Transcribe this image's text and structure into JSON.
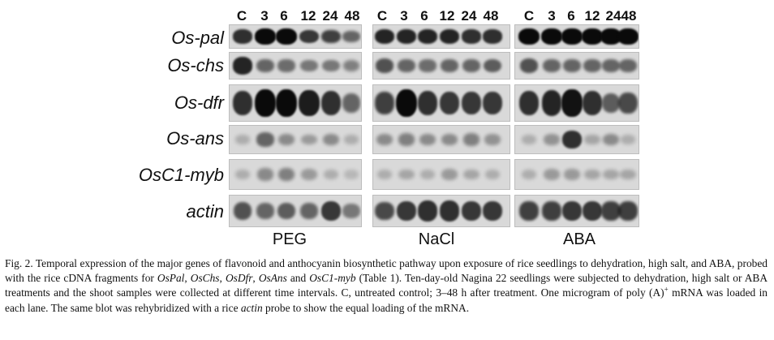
{
  "lanes": [
    "C",
    "3",
    "6",
    "12",
    "24",
    "48"
  ],
  "genes": [
    "Os-pal",
    "Os-chs",
    "Os-dfr",
    "Os-ans",
    "OsC1-myb",
    "actin"
  ],
  "treatments": [
    "PEG",
    "NaCl",
    "ABA"
  ],
  "caption": {
    "p1": "Fig. 2. Temporal expression of the major genes of flavonoid and anthocyanin biosynthetic pathway upon exposure of rice seedlings to dehydration, high salt, and ABA, probed with the rice cDNA fragments for ",
    "g1": "OsPal",
    "s1": ", ",
    "g2": "OsChs",
    "s2": ", ",
    "g3": "OsDfr",
    "s3": ", ",
    "g4": "OsAns",
    "s4": " and ",
    "g5": "OsC1-myb",
    "p2": " (Table 1). Ten-day-old Nagina 22 seedlings were subjected to dehydration, high salt or ABA treatments and the shoot samples were collected at different time intervals. C, untreated control; 3–48 h after treatment. One microgram of poly (A)",
    "sup": "+",
    "p3": " mRNA was loaded in each lane. The same blot was rehybridized with a rice ",
    "g6": "actin",
    "p4": " probe to show the equal loading of the mRNA."
  },
  "blot_intensity": {
    "PEG": [
      [
        0.8,
        1.0,
        1.0,
        0.75,
        0.7,
        0.5
      ],
      [
        0.85,
        0.5,
        0.45,
        0.4,
        0.4,
        0.35
      ],
      [
        0.8,
        1.0,
        1.0,
        0.9,
        0.8,
        0.5
      ],
      [
        0.1,
        0.5,
        0.3,
        0.2,
        0.3,
        0.1
      ],
      [
        0.1,
        0.3,
        0.35,
        0.2,
        0.1,
        0.05
      ],
      [
        0.6,
        0.5,
        0.55,
        0.5,
        0.75,
        0.4
      ]
    ],
    "NaCl": [
      [
        0.85,
        0.85,
        0.85,
        0.85,
        0.8,
        0.8
      ],
      [
        0.6,
        0.5,
        0.45,
        0.5,
        0.5,
        0.55
      ],
      [
        0.7,
        1.0,
        0.8,
        0.75,
        0.75,
        0.75
      ],
      [
        0.3,
        0.35,
        0.3,
        0.3,
        0.35,
        0.25
      ],
      [
        0.1,
        0.15,
        0.1,
        0.2,
        0.15,
        0.1
      ],
      [
        0.65,
        0.75,
        0.8,
        0.8,
        0.75,
        0.75
      ]
    ],
    "ABA": [
      [
        1.0,
        1.0,
        1.0,
        1.0,
        1.0,
        1.0
      ],
      [
        0.6,
        0.5,
        0.5,
        0.5,
        0.5,
        0.5
      ],
      [
        0.8,
        0.85,
        0.95,
        0.8,
        0.55,
        0.65
      ],
      [
        0.1,
        0.25,
        0.8,
        0.15,
        0.3,
        0.1
      ],
      [
        0.1,
        0.2,
        0.2,
        0.15,
        0.15,
        0.15
      ],
      [
        0.7,
        0.7,
        0.75,
        0.75,
        0.7,
        0.7
      ]
    ]
  }
}
